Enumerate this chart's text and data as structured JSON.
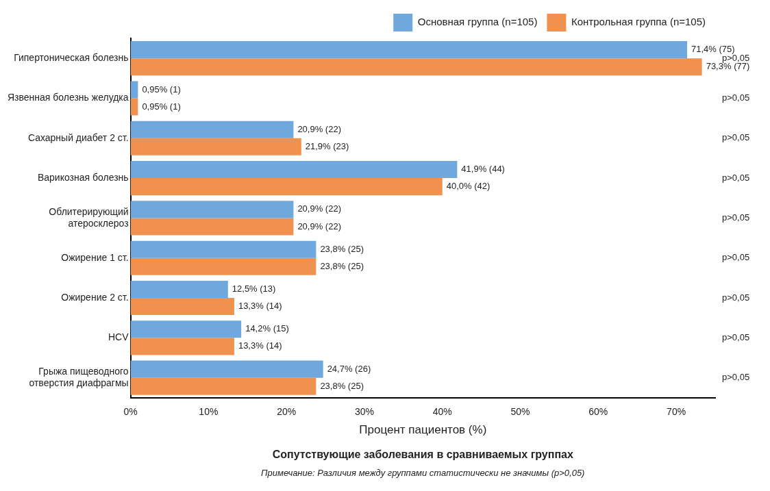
{
  "chart_data": {
    "type": "bar",
    "orientation": "horizontal",
    "title": "Сопутствующие заболевания в сравниваемых группах",
    "xlabel": "Процент пациентов (%)",
    "categories": [
      "Гипертоническая болезнь",
      "Язвенная болезнь желудка",
      "Сахарный диабет 2 ст.",
      "Варикозная болезнь",
      "Облитерирующий атеросклероз",
      "Ожирение 1 ст.",
      "Ожирение 2 ст.",
      "HCV",
      "Грыжа пищеводного отверстия диафрагмы"
    ],
    "series": [
      {
        "name": "Основная группа (n=105)",
        "color": "#6fa8dc",
        "values": [
          71.4,
          0.95,
          20.9,
          41.9,
          20.9,
          23.8,
          12.5,
          14.2,
          24.7
        ],
        "value_labels": [
          "71,4% (75)",
          "0,95% (1)",
          "20,9% (22)",
          "41,9% (44)",
          "20,9% (22)",
          "23,8% (25)",
          "12,5% (13)",
          "14,2% (15)",
          "24,7% (26)"
        ]
      },
      {
        "name": "Контрольная группа (n=105)",
        "color": "#f0914f",
        "values": [
          73.3,
          0.95,
          21.9,
          40.0,
          20.9,
          23.8,
          13.3,
          13.3,
          23.8
        ],
        "value_labels": [
          "73,3% (77)",
          "0,95% (1)",
          "21,9% (23)",
          "40,0% (42)",
          "20,9% (22)",
          "23,8% (25)",
          "13,3% (14)",
          "13,3% (14)",
          "23,8% (25)"
        ]
      }
    ],
    "xlim": [
      0,
      75
    ],
    "xticks": [
      {
        "value": 0,
        "label": "0%"
      },
      {
        "value": 10,
        "label": "10%"
      },
      {
        "value": 20,
        "label": "20%"
      },
      {
        "value": 30,
        "label": "30%"
      },
      {
        "value": 40,
        "label": "40%"
      },
      {
        "value": 50,
        "label": "50%"
      },
      {
        "value": 60,
        "label": "60%"
      },
      {
        "value": 70,
        "label": "70%"
      }
    ],
    "grid": false,
    "legend": "top right",
    "annotations": [
      "p>0,05",
      "p>0,05",
      "p>0,05",
      "p>0,05",
      "p>0,05",
      "p>0,05",
      "p>0,05",
      "p>0,05",
      "p>0,05",
      "Примечание: Различия между группами статистически не значимы (p>0,05)"
    ]
  }
}
